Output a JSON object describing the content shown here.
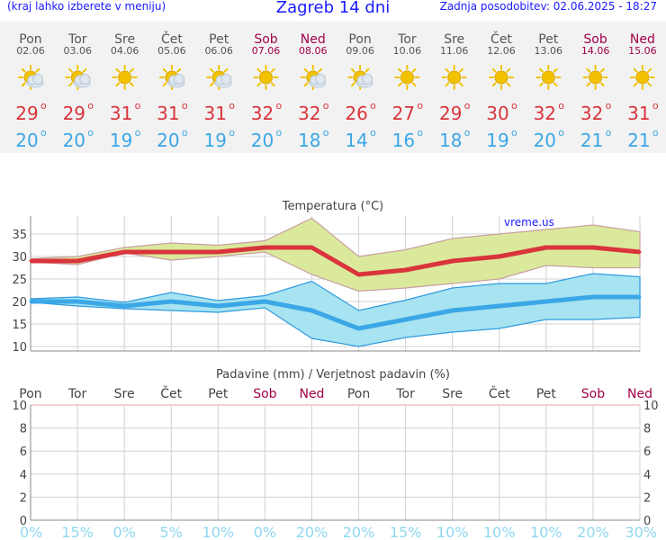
{
  "header": {
    "menu_hint": "(kraj lahko izberete v meniju)",
    "title": "Zagreb 14 dni",
    "updated": "Zadnja posodobitev: 02.06.2025 - 18:27"
  },
  "colors": {
    "header_text": "#1a1aff",
    "weekday": "#555555",
    "weekend": "#a0004a",
    "tmax": "#d9343c",
    "tmin": "#3ba7e6",
    "max_band": "#dbe99c",
    "min_band": "#a7e3f0",
    "precip_pct": "#8fd8f0",
    "sun": "#f2c200",
    "cloud": "#b9c8d6"
  },
  "days": [
    {
      "name": "Pon",
      "date": "02.06",
      "weekend": false,
      "icon": "sun-cloud-icon",
      "tmax": "29",
      "tmin": "20"
    },
    {
      "name": "Tor",
      "date": "03.06",
      "weekend": false,
      "icon": "sun-cloud-icon",
      "tmax": "29",
      "tmin": "20"
    },
    {
      "name": "Sre",
      "date": "04.06",
      "weekend": false,
      "icon": "sun-icon",
      "tmax": "31",
      "tmin": "19"
    },
    {
      "name": "Čet",
      "date": "05.06",
      "weekend": false,
      "icon": "sun-cloud-icon",
      "tmax": "31",
      "tmin": "20"
    },
    {
      "name": "Pet",
      "date": "06.06",
      "weekend": false,
      "icon": "sun-cloud-icon",
      "tmax": "31",
      "tmin": "19"
    },
    {
      "name": "Sob",
      "date": "07.06",
      "weekend": true,
      "icon": "sun-icon",
      "tmax": "32",
      "tmin": "20"
    },
    {
      "name": "Ned",
      "date": "08.06",
      "weekend": true,
      "icon": "sun-cloud-icon",
      "tmax": "32",
      "tmin": "18"
    },
    {
      "name": "Pon",
      "date": "09.06",
      "weekend": false,
      "icon": "sun-cloud-icon",
      "tmax": "26",
      "tmin": "14"
    },
    {
      "name": "Tor",
      "date": "10.06",
      "weekend": false,
      "icon": "sun-icon",
      "tmax": "27",
      "tmin": "16"
    },
    {
      "name": "Sre",
      "date": "11.06",
      "weekend": false,
      "icon": "sun-icon",
      "tmax": "29",
      "tmin": "18"
    },
    {
      "name": "Čet",
      "date": "12.06",
      "weekend": false,
      "icon": "sun-icon",
      "tmax": "30",
      "tmin": "19"
    },
    {
      "name": "Pet",
      "date": "13.06",
      "weekend": false,
      "icon": "sun-icon",
      "tmax": "32",
      "tmin": "20"
    },
    {
      "name": "Sob",
      "date": "14.06",
      "weekend": true,
      "icon": "sun-icon",
      "tmax": "32",
      "tmin": "21"
    },
    {
      "name": "Ned",
      "date": "15.06",
      "weekend": true,
      "icon": "sun-icon",
      "tmax": "31",
      "tmin": "21"
    }
  ],
  "chart_data": [
    {
      "type": "line",
      "title": "Temperatura (°C)",
      "watermark": "vreme.us",
      "categories": [
        "Pon",
        "Tor",
        "Sre",
        "Čet",
        "Pet",
        "Sob",
        "Ned",
        "Pon",
        "Tor",
        "Sre",
        "Čet",
        "Pet",
        "Sob",
        "Ned"
      ],
      "ylim": [
        9,
        39
      ],
      "yticks": [
        10,
        15,
        20,
        25,
        30,
        35
      ],
      "grid": true,
      "series": [
        {
          "values": [
            29,
            29,
            31,
            31,
            31,
            32,
            32,
            26,
            27,
            29,
            30,
            32,
            32,
            31
          ]
        },
        {
          "values": [
            20,
            20,
            19,
            20,
            19,
            20,
            18,
            14,
            16,
            18,
            19,
            20,
            21,
            21
          ]
        }
      ],
      "bands": [
        {
          "upper": [
            29.5,
            30,
            32,
            33,
            32.5,
            33.5,
            38.5,
            30,
            31.5,
            34,
            35,
            36,
            37,
            35.5
          ],
          "lower": [
            28.8,
            28.2,
            30.8,
            29.2,
            30,
            31,
            26,
            22.3,
            23,
            24,
            25,
            28,
            27.5,
            27.5
          ]
        },
        {
          "upper": [
            20.6,
            21,
            19.8,
            22,
            20.2,
            21.3,
            24.5,
            18,
            20.3,
            23,
            24,
            24,
            26.2,
            25.5
          ],
          "lower": [
            19.8,
            19,
            18.4,
            18,
            17.6,
            18.6,
            11.8,
            10,
            12,
            13.2,
            14,
            16,
            16,
            16.5
          ]
        }
      ]
    },
    {
      "type": "bar",
      "title": "Padavine (mm) / Verjetnost padavin (%)",
      "categories": [
        "Pon",
        "Tor",
        "Sre",
        "Čet",
        "Pet",
        "Sob",
        "Ned",
        "Pon",
        "Tor",
        "Sre",
        "Čet",
        "Pet",
        "Sob",
        "Ned"
      ],
      "weekend": [
        false,
        false,
        false,
        false,
        false,
        true,
        true,
        false,
        false,
        false,
        false,
        false,
        true,
        true
      ],
      "ylim": [
        0,
        10
      ],
      "yticks": [
        0,
        2,
        4,
        6,
        8,
        10
      ],
      "values": [
        0,
        0,
        0,
        0,
        0,
        0,
        0,
        0,
        0,
        0,
        0,
        0,
        0,
        0
      ],
      "probability_labels": [
        "0%",
        "15%",
        "0%",
        "5%",
        "10%",
        "0%",
        "20%",
        "20%",
        "15%",
        "10%",
        "10%",
        "10%",
        "20%",
        "30%"
      ]
    }
  ]
}
